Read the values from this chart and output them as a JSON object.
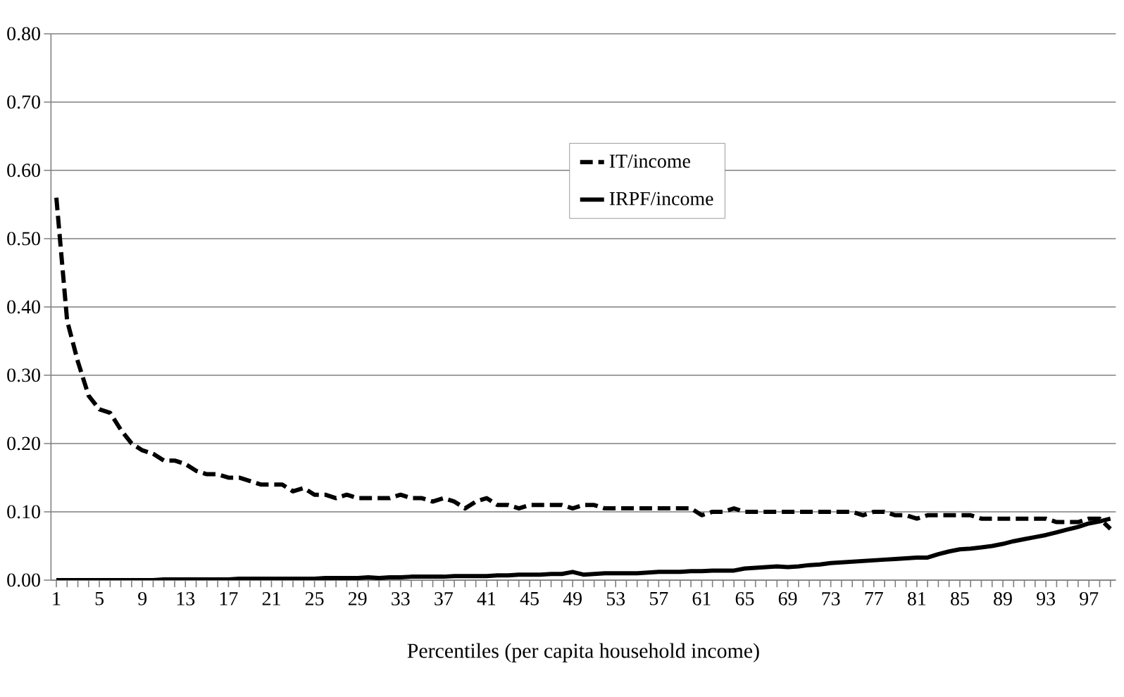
{
  "chart_data": {
    "type": "line",
    "xlabel": "Percentiles (per capita household income)",
    "categories": [
      "1",
      null,
      null,
      null,
      "5",
      null,
      null,
      null,
      "9",
      null,
      null,
      null,
      "13",
      null,
      null,
      null,
      "17",
      null,
      null,
      null,
      "21",
      null,
      null,
      null,
      "25",
      null,
      null,
      null,
      "29",
      null,
      null,
      null,
      "33",
      null,
      null,
      null,
      "37",
      null,
      null,
      null,
      "41",
      null,
      null,
      null,
      "45",
      null,
      null,
      null,
      "49",
      null,
      null,
      null,
      "53",
      null,
      null,
      null,
      "57",
      null,
      null,
      null,
      "61",
      null,
      null,
      null,
      "65",
      null,
      null,
      null,
      "69",
      null,
      null,
      null,
      "73",
      null,
      null,
      null,
      "77",
      null,
      null,
      null,
      "81",
      null,
      null,
      null,
      "85",
      null,
      null,
      null,
      "89",
      null,
      null,
      null,
      "93",
      null,
      null,
      null,
      "97",
      null,
      null
    ],
    "series": [
      {
        "name": "IT/income",
        "color": "#000000",
        "line_style": "dashed",
        "values": [
          0.56,
          0.38,
          0.32,
          0.27,
          0.25,
          0.245,
          0.22,
          0.2,
          0.19,
          0.185,
          0.175,
          0.175,
          0.17,
          0.16,
          0.155,
          0.155,
          0.15,
          0.15,
          0.145,
          0.14,
          0.14,
          0.14,
          0.13,
          0.135,
          0.125,
          0.125,
          0.12,
          0.125,
          0.12,
          0.12,
          0.12,
          0.12,
          0.125,
          0.12,
          0.12,
          0.115,
          0.12,
          0.115,
          0.105,
          0.115,
          0.12,
          0.11,
          0.11,
          0.105,
          0.11,
          0.11,
          0.11,
          0.11,
          0.105,
          0.11,
          0.11,
          0.105,
          0.105,
          0.105,
          0.105,
          0.105,
          0.105,
          0.105,
          0.105,
          0.105,
          0.095,
          0.1,
          0.1,
          0.105,
          0.1,
          0.1,
          0.1,
          0.1,
          0.1,
          0.1,
          0.1,
          0.1,
          0.1,
          0.1,
          0.1,
          0.095,
          0.1,
          0.1,
          0.095,
          0.095,
          0.09,
          0.095,
          0.095,
          0.095,
          0.095,
          0.095,
          0.09,
          0.09,
          0.09,
          0.09,
          0.09,
          0.09,
          0.09,
          0.085,
          0.085,
          0.085,
          0.09,
          0.09,
          0.075
        ]
      },
      {
        "name": "IRPF/income",
        "color": "#000000",
        "line_style": "solid",
        "values": [
          0,
          0,
          0,
          0,
          0,
          0,
          0,
          0,
          0,
          0,
          0.001,
          0.001,
          0.001,
          0.001,
          0.001,
          0.001,
          0.001,
          0.002,
          0.002,
          0.002,
          0.002,
          0.002,
          0.002,
          0.002,
          0.002,
          0.003,
          0.003,
          0.003,
          0.003,
          0.004,
          0.003,
          0.004,
          0.004,
          0.005,
          0.005,
          0.005,
          0.005,
          0.006,
          0.006,
          0.006,
          0.006,
          0.007,
          0.007,
          0.008,
          0.008,
          0.008,
          0.009,
          0.009,
          0.012,
          0.008,
          0.009,
          0.01,
          0.01,
          0.01,
          0.01,
          0.011,
          0.012,
          0.012,
          0.012,
          0.013,
          0.013,
          0.014,
          0.014,
          0.014,
          0.017,
          0.018,
          0.019,
          0.02,
          0.019,
          0.02,
          0.022,
          0.023,
          0.025,
          0.026,
          0.027,
          0.028,
          0.029,
          0.03,
          0.031,
          0.032,
          0.033,
          0.033,
          0.038,
          0.042,
          0.045,
          0.046,
          0.048,
          0.05,
          0.053,
          0.057,
          0.06,
          0.063,
          0.066,
          0.07,
          0.074,
          0.078,
          0.083,
          0.086,
          0.09
        ]
      }
    ],
    "ylim": [
      0,
      0.8
    ],
    "yticks": [
      {
        "value": 0,
        "label": "0.00"
      },
      {
        "value": 0.1,
        "label": "0.10"
      },
      {
        "value": 0.2,
        "label": "0.20"
      },
      {
        "value": 0.3,
        "label": "0.30"
      },
      {
        "value": 0.4,
        "label": "0.40"
      },
      {
        "value": 0.5,
        "label": "0.50"
      },
      {
        "value": 0.6,
        "label": "0.60"
      },
      {
        "value": 0.7,
        "label": "0.70"
      },
      {
        "value": 0.8,
        "label": "0.80"
      }
    ],
    "grid": "y",
    "legend": "top",
    "marker": "none"
  }
}
